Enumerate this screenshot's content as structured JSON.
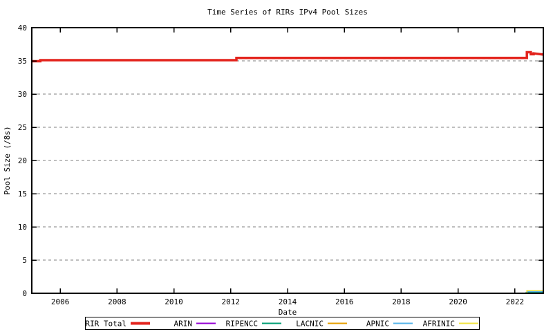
{
  "chart_data": {
    "type": "line",
    "title": "Time Series of RIRs IPv4 Pool Sizes",
    "xlabel": "Date",
    "ylabel": "Pool Size (/8s)",
    "xlim": [
      2005,
      2023
    ],
    "ylim": [
      0,
      40
    ],
    "xticks": [
      2006,
      2008,
      2010,
      2012,
      2014,
      2016,
      2018,
      2020,
      2022
    ],
    "yticks": [
      0,
      5,
      10,
      15,
      20,
      25,
      30,
      35,
      40
    ],
    "grid": {
      "horizontal": true,
      "vertical": false,
      "style": "dashed",
      "color": "#7f7f7f"
    },
    "legend": {
      "position": "bottom",
      "border": true
    },
    "axis_color": "#000000",
    "background": "#ffffff",
    "series": [
      {
        "name": "RIR Total",
        "color": "#e3231c",
        "line_width": 3.5,
        "x": [
          2005.0,
          2005.3,
          2005.3,
          2012.2,
          2012.2,
          2022.42,
          2022.42,
          2022.56,
          2022.56,
          2022.66,
          2022.66,
          2023.0
        ],
        "y": [
          34.95,
          34.95,
          35.1,
          35.1,
          35.45,
          35.45,
          36.3,
          36.3,
          36.0,
          36.0,
          36.12,
          35.95
        ]
      },
      {
        "name": "ARIN",
        "color": "#9400d3",
        "line_width": 1.5,
        "x": [
          2005.0,
          2022.4,
          2022.4,
          2022.5,
          2022.5,
          2023.0
        ],
        "y": [
          0.02,
          0.02,
          0.15,
          0.15,
          0.05,
          0.05
        ]
      },
      {
        "name": "RIPENCC",
        "color": "#009e73",
        "line_width": 1.5,
        "x": [
          2005.0,
          2022.4,
          2022.4,
          2023.0
        ],
        "y": [
          0.02,
          0.02,
          0.12,
          0.12
        ]
      },
      {
        "name": "LACNIC",
        "color": "#e69f00",
        "line_width": 1.5,
        "x": [
          2005.0,
          2023.0
        ],
        "y": [
          0.02,
          0.02
        ]
      },
      {
        "name": "APNIC",
        "color": "#56b4e9",
        "line_width": 1.5,
        "x": [
          2005.0,
          2022.42,
          2022.42,
          2023.0
        ],
        "y": [
          0.02,
          0.02,
          0.25,
          0.25
        ]
      },
      {
        "name": "AFRINIC",
        "color": "#f0e442",
        "line_width": 1.5,
        "x": [
          2005.0,
          2022.42,
          2022.42,
          2023.0
        ],
        "y": [
          0.02,
          0.02,
          0.42,
          0.42
        ]
      }
    ]
  }
}
